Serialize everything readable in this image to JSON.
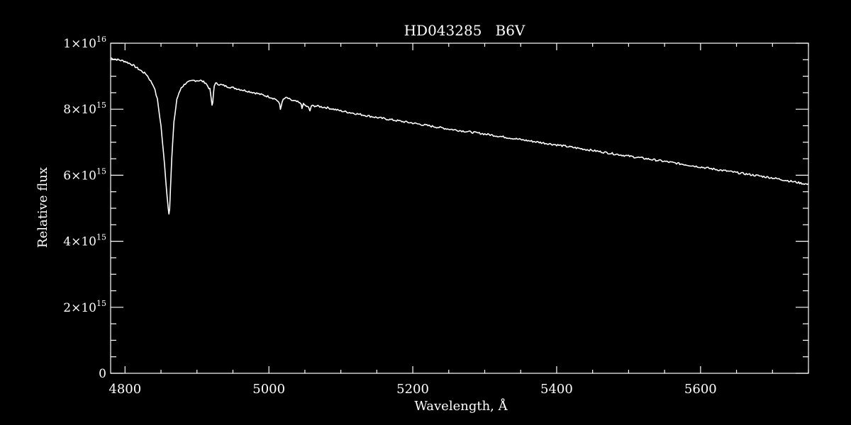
{
  "chart_data": {
    "type": "line",
    "title": "HD043285   B6V",
    "xlabel": "Wavelength, Å",
    "ylabel": "Relative flux",
    "xlim": [
      4780,
      5750
    ],
    "ylim": [
      0,
      1e+16
    ],
    "x_major_ticks": [
      {
        "value": 4800,
        "label": "4800"
      },
      {
        "value": 5000,
        "label": "5000"
      },
      {
        "value": 5200,
        "label": "5200"
      },
      {
        "value": 5400,
        "label": "5400"
      },
      {
        "value": 5600,
        "label": "5600"
      }
    ],
    "y_major_ticks": [
      {
        "value": 0,
        "label": "0",
        "base": "0",
        "exp": ""
      },
      {
        "value": 2000000000000000.0,
        "label": "2×10^15",
        "base": "2×10",
        "exp": "15"
      },
      {
        "value": 4000000000000000.0,
        "label": "4×10^15",
        "base": "4×10",
        "exp": "15"
      },
      {
        "value": 6000000000000000.0,
        "label": "6×10^15",
        "base": "6×10",
        "exp": "15"
      },
      {
        "value": 8000000000000000.0,
        "label": "8×10^15",
        "base": "8×10",
        "exp": "15"
      },
      {
        "value": 1e+16,
        "label": "1×10^16",
        "base": "1×10",
        "exp": "16"
      }
    ],
    "grid": false,
    "line_color": "#ffffff",
    "background_color": "#000000",
    "series": [
      {
        "x": [
          4780,
          4790,
          4800,
          4810,
          4820,
          4830,
          4840,
          4845,
          4850,
          4855,
          4858,
          4860,
          4861,
          4862,
          4863,
          4865,
          4868,
          4872,
          4878,
          4885,
          4895,
          4905,
          4912,
          4918,
          4920,
          4921,
          4922,
          4923,
          4924,
          4926,
          4930,
          4940,
          4960,
          4980,
          5000,
          5010,
          5015,
          5016,
          5017,
          5020,
          5025,
          5030,
          5040,
          5045,
          5046,
          5048,
          5055,
          5057,
          5059,
          5065,
          5080,
          5100,
          5150,
          5200,
          5250,
          5300,
          5350,
          5400,
          5450,
          5500,
          5550,
          5600,
          5650,
          5700,
          5750
        ],
        "y": [
          9550000000000000.0,
          9500000000000000.0,
          9450000000000000.0,
          9350000000000000.0,
          9200000000000000.0,
          9050000000000000.0,
          8700000000000000.0,
          8300000000000000.0,
          7500000000000000.0,
          6300000000000000.0,
          5500000000000000.0,
          5000000000000000.0,
          4850000000000000.0,
          5000000000000000.0,
          5500000000000000.0,
          6500000000000000.0,
          7600000000000000.0,
          8300000000000000.0,
          8650000000000000.0,
          8800000000000000.0,
          8870000000000000.0,
          8870000000000000.0,
          8800000000000000.0,
          8600000000000000.0,
          8300000000000000.0,
          8100000000000000.0,
          8200000000000000.0,
          8500000000000000.0,
          8720000000000000.0,
          8780000000000000.0,
          8760000000000000.0,
          8700000000000000.0,
          8600000000000000.0,
          8500000000000000.0,
          8380000000000000.0,
          8300000000000000.0,
          8150000000000000.0,
          8000000000000000.0,
          8100000000000000.0,
          8300000000000000.0,
          8350000000000000.0,
          8280000000000000.0,
          8220000000000000.0,
          8150000000000000.0,
          8050000000000000.0,
          8150000000000000.0,
          8050000000000000.0,
          7950000000000000.0,
          8100000000000000.0,
          8100000000000000.0,
          8050000000000000.0,
          7950000000000000.0,
          7750000000000000.0,
          7580000000000000.0,
          7400000000000000.0,
          7250000000000000.0,
          7080000000000000.0,
          6920000000000000.0,
          6750000000000000.0,
          6580000000000000.0,
          6420000000000000.0,
          6250000000000000.0,
          6080000000000000.0,
          5920000000000000.0,
          5720000000000000.0
        ]
      }
    ]
  }
}
